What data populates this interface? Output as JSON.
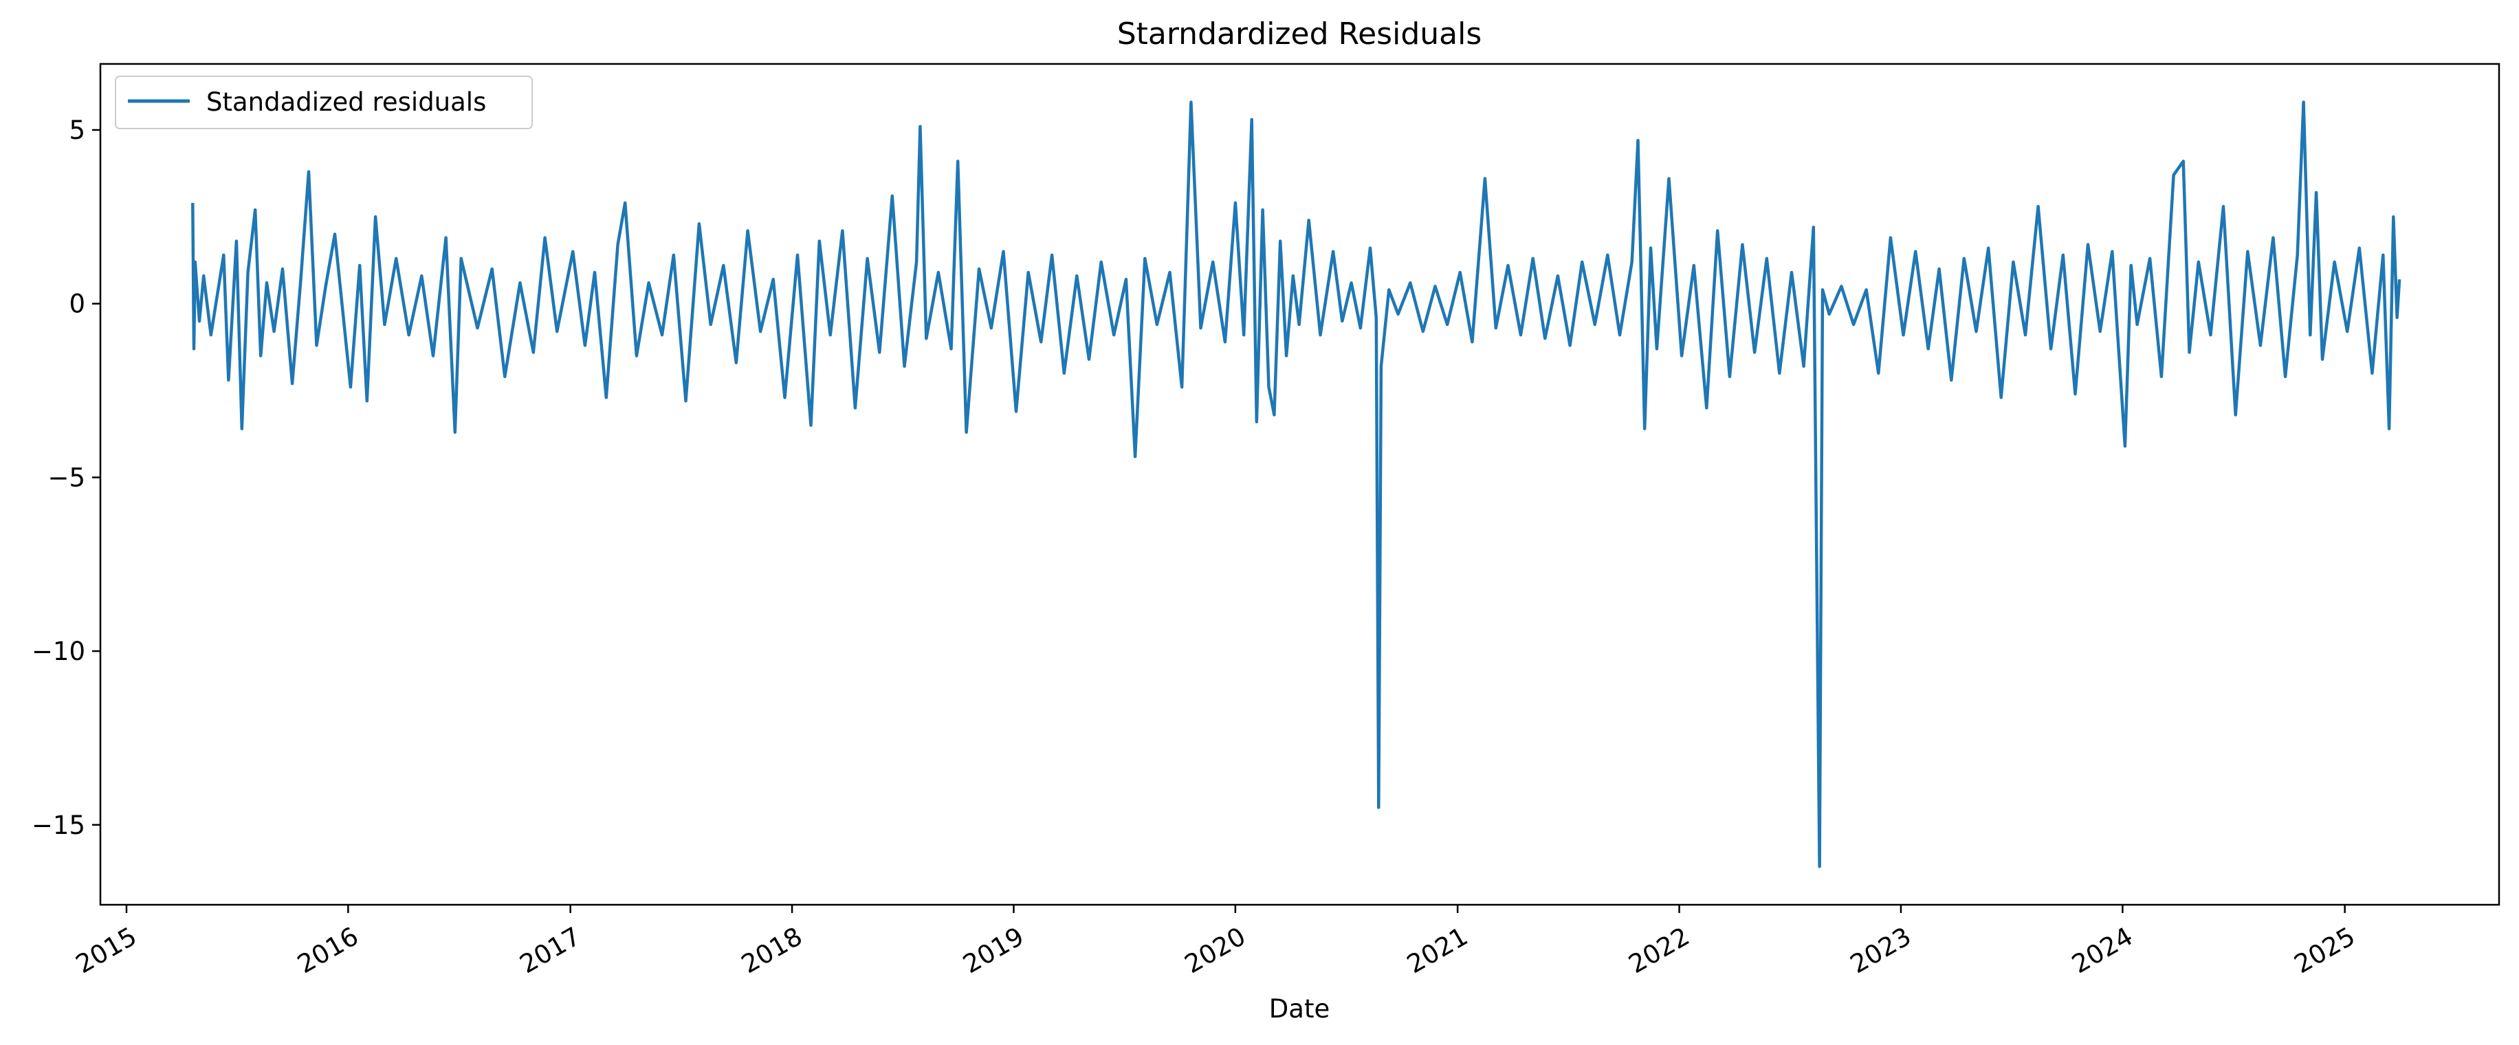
{
  "chart_data": {
    "type": "line",
    "title": "Starndardized Residuals",
    "xlabel": "Date",
    "ylabel": "",
    "x_type": "date",
    "xlim": [
      "2014-11-19",
      "2025-09-12"
    ],
    "ylim": [
      -17.3,
      6.9
    ],
    "x_ticks": [
      "2015-01-01",
      "2016-01-01",
      "2017-01-01",
      "2018-01-01",
      "2019-01-01",
      "2020-01-01",
      "2021-01-01",
      "2022-01-01",
      "2023-01-01",
      "2024-01-01",
      "2025-01-01"
    ],
    "x_tick_labels": [
      "2015",
      "2016",
      "2017",
      "2018",
      "2019",
      "2020",
      "2021",
      "2022",
      "2023",
      "2024",
      "2025"
    ],
    "y_ticks": [
      5,
      0,
      -5,
      -10,
      -15
    ],
    "y_tick_labels": [
      "5",
      "0",
      "−5",
      "−10",
      "−15"
    ],
    "grid": false,
    "legend_position": "top-left",
    "series": [
      {
        "name": "Standadized residuals",
        "color": "#1f77b4",
        "x": [
          "2015-04-20",
          "2015-04-22",
          "2015-04-24",
          "2015-05-01",
          "2015-05-08",
          "2015-05-20",
          "2015-06-10",
          "2015-06-18",
          "2015-07-01",
          "2015-07-10",
          "2015-07-20",
          "2015-08-01",
          "2015-08-10",
          "2015-08-20",
          "2015-09-01",
          "2015-09-15",
          "2015-10-01",
          "2015-10-15",
          "2015-10-28",
          "2015-11-10",
          "2015-11-25",
          "2015-12-10",
          "2016-01-05",
          "2016-01-20",
          "2016-02-01",
          "2016-02-15",
          "2016-03-01",
          "2016-03-20",
          "2016-04-10",
          "2016-05-01",
          "2016-05-20",
          "2016-06-10",
          "2016-06-25",
          "2016-07-05",
          "2016-08-01",
          "2016-08-25",
          "2016-09-15",
          "2016-10-10",
          "2016-11-01",
          "2016-11-20",
          "2016-12-10",
          "2017-01-05",
          "2017-01-25",
          "2017-02-10",
          "2017-03-01",
          "2017-03-20",
          "2017-04-01",
          "2017-04-20",
          "2017-05-10",
          "2017-06-01",
          "2017-06-20",
          "2017-07-10",
          "2017-08-01",
          "2017-08-20",
          "2017-09-10",
          "2017-10-01",
          "2017-10-20",
          "2017-11-10",
          "2017-12-01",
          "2017-12-20",
          "2018-01-10",
          "2018-02-01",
          "2018-02-15",
          "2018-03-05",
          "2018-03-25",
          "2018-04-15",
          "2018-05-05",
          "2018-05-25",
          "2018-06-15",
          "2018-07-05",
          "2018-07-25",
          "2018-07-31",
          "2018-08-10",
          "2018-08-30",
          "2018-09-20",
          "2018-10-01",
          "2018-10-15",
          "2018-11-05",
          "2018-11-25",
          "2018-12-15",
          "2019-01-05",
          "2019-01-25",
          "2019-02-15",
          "2019-03-05",
          "2019-03-25",
          "2019-04-15",
          "2019-05-05",
          "2019-05-25",
          "2019-06-15",
          "2019-07-05",
          "2019-07-20",
          "2019-08-05",
          "2019-08-25",
          "2019-09-15",
          "2019-10-05",
          "2019-10-20",
          "2019-11-05",
          "2019-11-25",
          "2019-12-15",
          "2020-01-01",
          "2020-01-15",
          "2020-01-28",
          "2020-02-05",
          "2020-02-15",
          "2020-02-25",
          "2020-03-05",
          "2020-03-15",
          "2020-03-25",
          "2020-04-05",
          "2020-04-15",
          "2020-05-01",
          "2020-05-20",
          "2020-06-10",
          "2020-06-25",
          "2020-07-10",
          "2020-07-25",
          "2020-08-10",
          "2020-08-20",
          "2020-08-24",
          "2020-08-28",
          "2020-09-10",
          "2020-09-25",
          "2020-10-15",
          "2020-11-05",
          "2020-11-25",
          "2020-12-15",
          "2021-01-05",
          "2021-01-25",
          "2021-02-15",
          "2021-03-05",
          "2021-03-25",
          "2021-04-15",
          "2021-05-05",
          "2021-05-25",
          "2021-06-15",
          "2021-07-05",
          "2021-07-25",
          "2021-08-15",
          "2021-09-05",
          "2021-09-25",
          "2021-10-15",
          "2021-10-25",
          "2021-11-05",
          "2021-11-15",
          "2021-11-25",
          "2021-12-15",
          "2022-01-05",
          "2022-01-25",
          "2022-02-15",
          "2022-03-05",
          "2022-03-25",
          "2022-04-15",
          "2022-05-05",
          "2022-05-25",
          "2022-06-15",
          "2022-07-05",
          "2022-07-25",
          "2022-08-10",
          "2022-08-20",
          "2022-08-25",
          "2022-09-05",
          "2022-09-25",
          "2022-10-15",
          "2022-11-05",
          "2022-11-25",
          "2022-12-15",
          "2023-01-05",
          "2023-01-25",
          "2023-02-15",
          "2023-03-05",
          "2023-03-25",
          "2023-04-15",
          "2023-05-05",
          "2023-05-25",
          "2023-06-15",
          "2023-07-05",
          "2023-07-25",
          "2023-08-15",
          "2023-09-05",
          "2023-09-25",
          "2023-10-15",
          "2023-11-05",
          "2023-11-25",
          "2023-12-15",
          "2024-01-05",
          "2024-01-15",
          "2024-01-25",
          "2024-02-15",
          "2024-03-05",
          "2024-03-25",
          "2024-04-10",
          "2024-04-20",
          "2024-05-05",
          "2024-05-25",
          "2024-06-15",
          "2024-07-05",
          "2024-07-25",
          "2024-08-15",
          "2024-09-05",
          "2024-09-25",
          "2024-10-15",
          "2024-10-25",
          "2024-11-05",
          "2024-11-15",
          "2024-11-25",
          "2024-12-15",
          "2025-01-05",
          "2025-01-25",
          "2025-02-15",
          "2025-03-05",
          "2025-03-15",
          "2025-03-22",
          "2025-03-28",
          "2025-04-01"
        ],
        "y": [
          2.9,
          -1.3,
          1.2,
          -0.5,
          0.8,
          -0.9,
          1.4,
          -2.2,
          1.8,
          -3.6,
          0.9,
          2.7,
          -1.5,
          0.6,
          -0.8,
          1.0,
          -2.3,
          0.7,
          3.8,
          -1.2,
          0.5,
          2.0,
          -2.4,
          1.1,
          -2.8,
          2.5,
          -0.6,
          1.3,
          -0.9,
          0.8,
          -1.5,
          1.9,
          -3.7,
          1.3,
          -0.7,
          1.0,
          -2.1,
          0.6,
          -1.4,
          1.9,
          -0.8,
          1.5,
          -1.2,
          0.9,
          -2.7,
          1.7,
          2.9,
          -1.5,
          0.6,
          -0.9,
          1.4,
          -2.8,
          2.3,
          -0.6,
          1.1,
          -1.7,
          2.1,
          -0.8,
          0.7,
          -2.7,
          1.4,
          -3.5,
          1.8,
          -0.9,
          2.1,
          -3.0,
          1.3,
          -1.4,
          3.1,
          -1.8,
          1.2,
          5.1,
          -1.0,
          0.9,
          -1.3,
          4.1,
          -3.7,
          1.0,
          -0.7,
          1.5,
          -3.1,
          0.9,
          -1.1,
          1.4,
          -2.0,
          0.8,
          -1.6,
          1.2,
          -0.9,
          0.7,
          -4.4,
          1.3,
          -0.6,
          0.9,
          -2.4,
          5.8,
          -0.7,
          1.2,
          -1.1,
          2.9,
          -0.9,
          5.3,
          -3.4,
          2.7,
          -2.4,
          -3.2,
          1.8,
          -1.5,
          0.8,
          -0.6,
          2.4,
          -0.9,
          1.5,
          -0.5,
          0.6,
          -0.7,
          1.6,
          -0.4,
          -14.5,
          -1.8,
          0.4,
          -0.3,
          0.6,
          -0.8,
          0.5,
          -0.6,
          0.9,
          -1.1,
          3.6,
          -0.7,
          1.1,
          -0.9,
          1.3,
          -1.0,
          0.8,
          -1.2,
          1.2,
          -0.6,
          1.4,
          -0.9,
          1.2,
          4.7,
          -3.6,
          1.6,
          -1.3,
          3.6,
          -1.5,
          1.1,
          -3.0,
          2.1,
          -2.1,
          1.7,
          -1.4,
          1.3,
          -2.0,
          0.9,
          -1.8,
          2.2,
          -16.2,
          0.4,
          -0.3,
          0.5,
          -0.6,
          0.4,
          -2.0,
          1.9,
          -0.9,
          1.5,
          -1.3,
          1.0,
          -2.2,
          1.3,
          -0.8,
          1.6,
          -2.7,
          1.2,
          -0.9,
          2.8,
          -1.3,
          1.4,
          -2.6,
          1.7,
          -0.8,
          1.5,
          -4.1,
          1.1,
          -0.6,
          1.3,
          -2.1,
          3.7,
          4.1,
          -1.4,
          1.2,
          -0.9,
          2.8,
          -3.2,
          1.5,
          -1.2,
          1.9,
          -2.1,
          1.4,
          5.8,
          -0.9,
          3.2,
          -1.6,
          1.2,
          -0.8,
          1.6,
          -2.0,
          1.4,
          -3.6,
          2.5,
          -0.4,
          0.7
        ]
      }
    ]
  }
}
